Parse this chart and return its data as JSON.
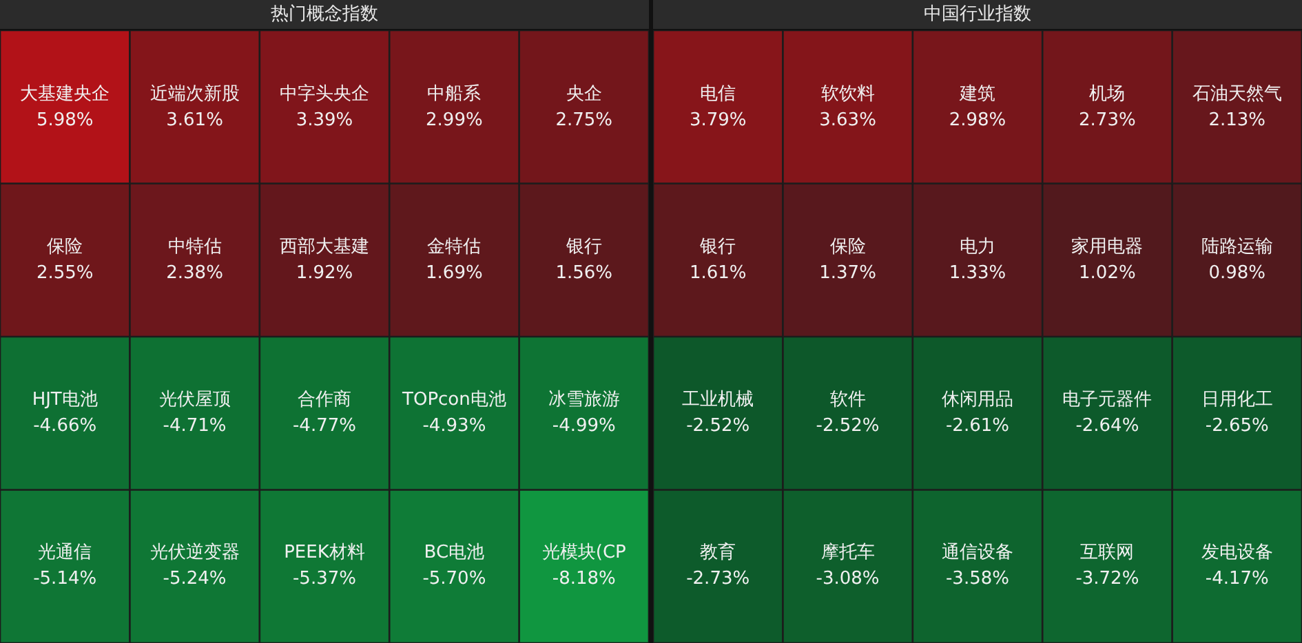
{
  "chart_data": [
    {
      "type": "other",
      "title": "热门概念指数",
      "categories": [
        "大基建央企",
        "近端次新股",
        "中字头央企",
        "中船系",
        "央企",
        "保险",
        "中特估",
        "西部大基建",
        "金特估",
        "银行",
        "HJT电池",
        "光伏屋顶",
        "合作商",
        "TOPcon电池",
        "冰雪旅游",
        "光通信",
        "光伏逆变器",
        "PEEK材料",
        "BC电池",
        "光模块(CP"
      ],
      "values": [
        5.98,
        3.61,
        3.39,
        2.99,
        2.75,
        2.55,
        2.38,
        1.92,
        1.69,
        1.56,
        -4.66,
        -4.71,
        -4.77,
        -4.93,
        -4.99,
        -5.14,
        -5.24,
        -5.37,
        -5.7,
        -8.18
      ],
      "value_labels": [
        "5.98%",
        "3.61%",
        "3.39%",
        "2.99%",
        "2.75%",
        "2.55%",
        "2.38%",
        "1.92%",
        "1.69%",
        "1.56%",
        "-4.66%",
        "-4.71%",
        "-4.77%",
        "-4.93%",
        "-4.99%",
        "-5.14%",
        "-5.24%",
        "-5.37%",
        "-5.70%",
        "-8.18%"
      ]
    },
    {
      "type": "other",
      "title": "中国行业指数",
      "categories": [
        "电信",
        "软饮料",
        "建筑",
        "机场",
        "石油天然气",
        "银行",
        "保险",
        "电力",
        "家用电器",
        "陆路运输",
        "工业机械",
        "软件",
        "休闲用品",
        "电子元器件",
        "日用化工",
        "教育",
        "摩托车",
        "通信设备",
        "互联网",
        "发电设备"
      ],
      "values": [
        3.79,
        3.63,
        2.98,
        2.73,
        2.13,
        1.61,
        1.37,
        1.33,
        1.02,
        0.98,
        -2.52,
        -2.52,
        -2.61,
        -2.64,
        -2.65,
        -2.73,
        -3.08,
        -3.58,
        -3.72,
        -4.17
      ],
      "value_labels": [
        "3.79%",
        "3.63%",
        "2.98%",
        "2.73%",
        "2.13%",
        "1.61%",
        "1.37%",
        "1.33%",
        "1.02%",
        "0.98%",
        "-2.52%",
        "-2.52%",
        "-2.61%",
        "-2.64%",
        "-2.65%",
        "-2.73%",
        "-3.08%",
        "-3.58%",
        "-3.72%",
        "-4.17%"
      ]
    }
  ]
}
